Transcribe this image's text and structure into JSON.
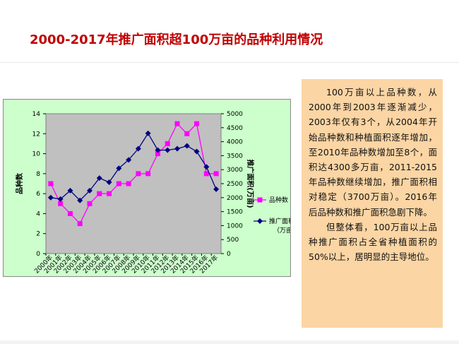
{
  "page": {
    "title": "2000-2017年推广面积超100万亩的品种利用情况"
  },
  "side_text": {
    "paragraphs": [
      "100万亩以上品种数，从2000年到2003年逐渐减少，2003年仅有3个，从2004年开始品种数和种植面积逐年增加，至2010年品种数增加至8个，面积达4300多万亩，2011-2015年品种数继续增加，推广面积相对稳定（3700万亩）。2016年后品种数和推广面积急剧下降。",
      "但整体看，100万亩以上品种推广面积占全省种植面积的50%以上，居明显的主导地位。"
    ]
  },
  "chart_data": {
    "type": "line",
    "categories": [
      "2000年",
      "2001年",
      "2002年",
      "2003年",
      "2004年",
      "2005年",
      "2006年",
      "2007年",
      "2008年",
      "2009年",
      "2010年",
      "2011年",
      "2012年",
      "2013年",
      "2014年",
      "2015年",
      "2016年",
      "2017年"
    ],
    "series": [
      {
        "name": "品种数",
        "axis": "left",
        "color": "#ff00ff",
        "marker": "square",
        "values": [
          7,
          5,
          4,
          3,
          5,
          6,
          6,
          7,
          7,
          8,
          8,
          10,
          11,
          13,
          12,
          13,
          8,
          8
        ]
      },
      {
        "name": "推广面积（万亩）",
        "axis": "right",
        "color": "#000080",
        "marker": "diamond",
        "values": [
          2000,
          1950,
          2250,
          1900,
          2250,
          2700,
          2550,
          3050,
          3350,
          3750,
          4300,
          3700,
          3700,
          3750,
          3850,
          3650,
          3100,
          2300
        ]
      }
    ],
    "y_left": {
      "label": "品种数",
      "range": [
        0,
        14
      ],
      "ticks": [
        0,
        2,
        4,
        6,
        8,
        10,
        12,
        14
      ]
    },
    "y_right": {
      "label": "推广面积(万亩)",
      "range": [
        0,
        5000
      ],
      "ticks": [
        0,
        500,
        1000,
        1500,
        2000,
        2500,
        3000,
        3500,
        4000,
        4500,
        5000
      ]
    },
    "plot_background": "#c0c0c0",
    "chart_background": "#ccffcc",
    "grid": false,
    "legend_position": "right"
  }
}
